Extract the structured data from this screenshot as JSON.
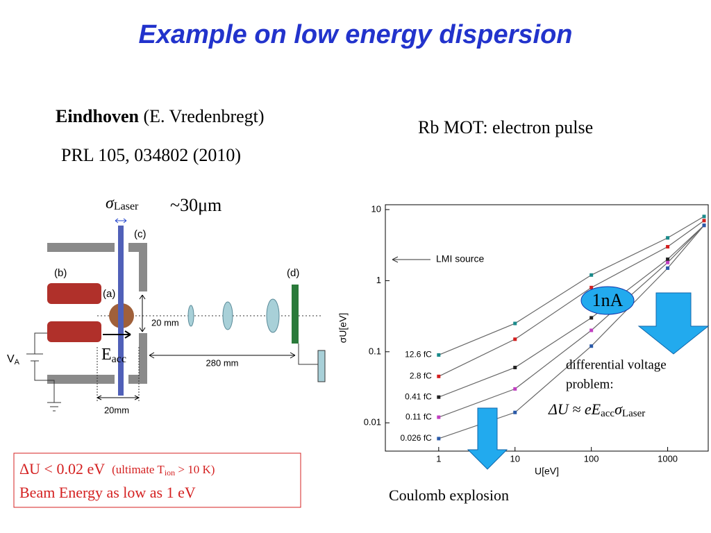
{
  "title": "Example on low energy dispersion",
  "left": {
    "lab": "Eindhoven",
    "author": "(E. Vredenbregt)",
    "reference": "PRL 105, 034802 (2010)",
    "laser_symbol": "σ",
    "laser_sub": "Laser",
    "laser_size": "~30μm",
    "diagram": {
      "c": "(c)",
      "b": "(b)",
      "a": "(a)",
      "d": "(d)",
      "gap": "20 mm",
      "length": "280 mm",
      "width": "20mm",
      "voltage": "V",
      "voltage_sub": "A",
      "field": "E",
      "field_sub": "acc"
    },
    "box": {
      "line1_main": "ΔU < 0.02 eV",
      "line1_note": "(ultimate T",
      "line1_sub": "ion",
      "line1_end": " > 10 K)",
      "line2": "Beam Energy as low as 1 eV"
    }
  },
  "right": {
    "heading": "Rb MOT: electron pulse",
    "current": "1nA",
    "note1": "differential voltage",
    "note2": "problem:",
    "formula": "ΔU ≈ eE",
    "formula_sub1": "acc",
    "formula_sigma": "σ",
    "formula_sub2": "Laser",
    "bottom": "Coulomb explosion"
  },
  "chart_data": {
    "type": "line",
    "xlabel": "U[eV]",
    "ylabel": "σU[eV]",
    "annotation": "LMI source",
    "x": [
      1,
      10,
      100,
      1000,
      3000
    ],
    "xlim": [
      0.2,
      3400
    ],
    "ylim": [
      0.004,
      11.7
    ],
    "xscale": "log",
    "yscale": "log",
    "xticks": [
      1,
      10,
      100,
      1000
    ],
    "yticks": [
      10,
      1,
      0.1,
      0.01
    ],
    "series": [
      {
        "name": "12.6 fC",
        "color": "#1a8a8a",
        "values": [
          0.09,
          0.25,
          1.2,
          4,
          8
        ]
      },
      {
        "name": "2.8 fC",
        "color": "#d42020",
        "values": [
          0.045,
          0.15,
          0.8,
          3,
          7
        ]
      },
      {
        "name": "0.41 fC",
        "color": "#222222",
        "values": [
          0.023,
          0.06,
          0.3,
          2,
          6
        ]
      },
      {
        "name": "0.11 fC",
        "color": "#c040c0",
        "values": [
          0.012,
          0.03,
          0.2,
          1.8,
          6
        ]
      },
      {
        "name": "0.026 fC",
        "color": "#2a5aa8",
        "values": [
          0.006,
          0.014,
          0.12,
          1.5,
          6
        ]
      }
    ]
  }
}
